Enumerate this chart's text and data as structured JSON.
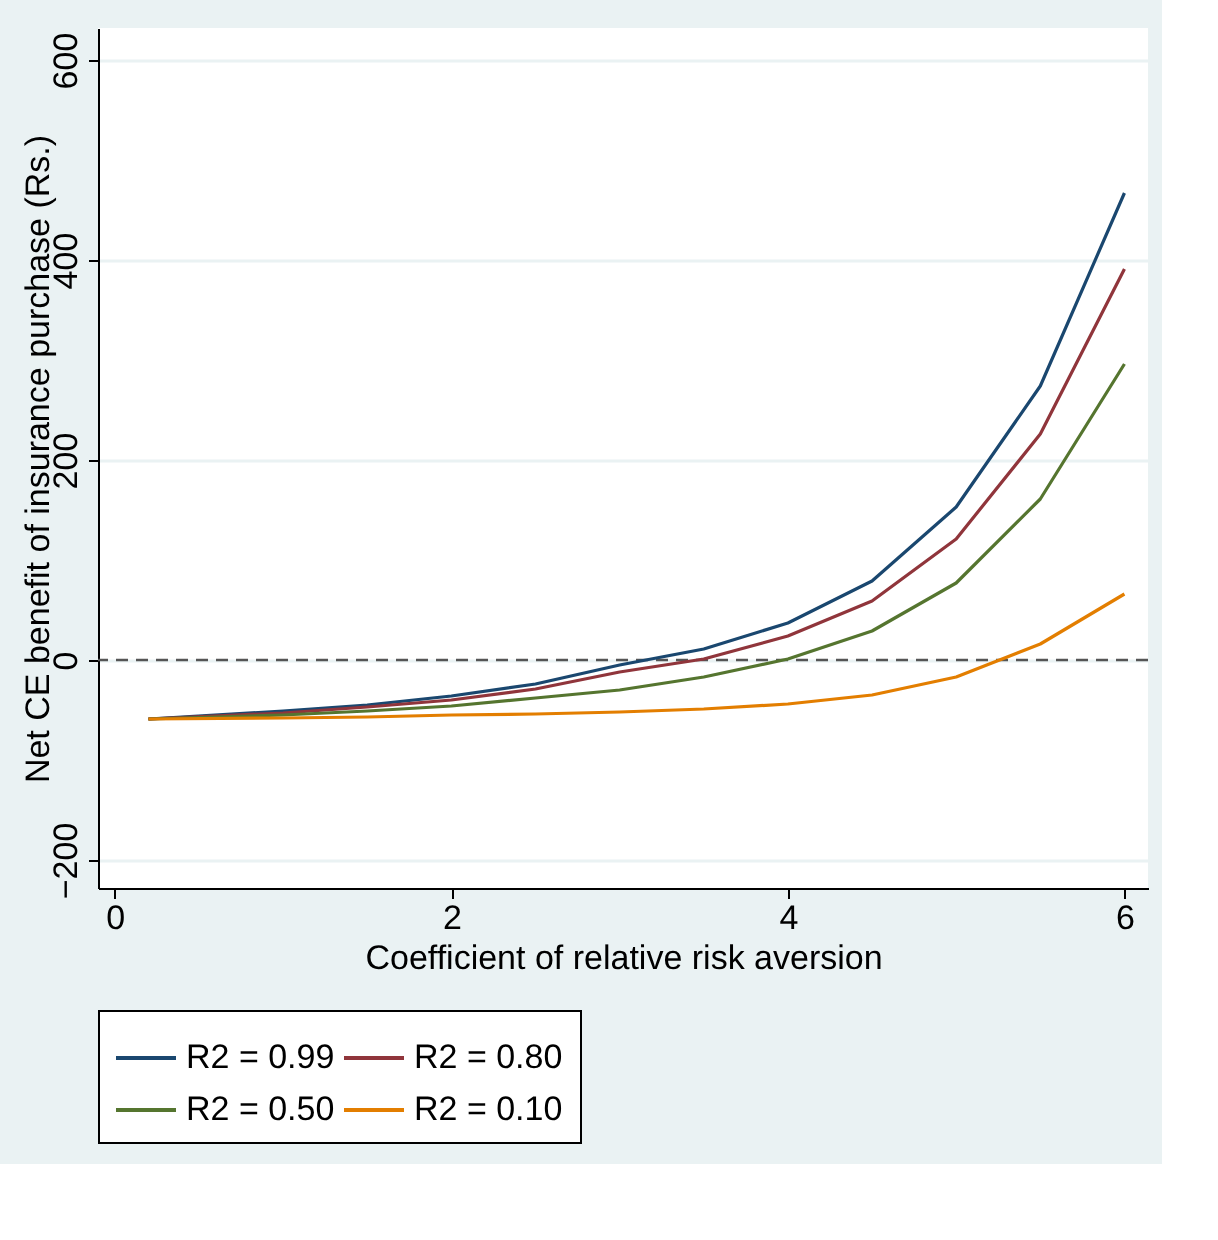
{
  "chart_data": {
    "type": "line",
    "xlabel": "Coefficient of relative risk aversion",
    "ylabel": "Net CE benefit of insurance purchase (Rs.)",
    "x": [
      0.2,
      1,
      1.5,
      2,
      2.5,
      3,
      3.5,
      4,
      4.5,
      5,
      5.5,
      6
    ],
    "series": [
      {
        "name": "R2 = 0.99",
        "color": "#1a476f",
        "values": [
          -59,
          -51,
          -45,
          -36,
          -24,
          -5,
          11,
          37,
          79,
          153,
          274,
          467
        ]
      },
      {
        "name": "R2 = 0.80",
        "color": "#90353b",
        "values": [
          -59,
          -53,
          -47,
          -40,
          -29,
          -12,
          1,
          24,
          59,
          121,
          226,
          391
        ]
      },
      {
        "name": "R2 = 0.50",
        "color": "#55752f",
        "values": [
          -59,
          -55,
          -51,
          -46,
          -38,
          -30,
          -17,
          1,
          29,
          77,
          161,
          296
        ]
      },
      {
        "name": "R2 = 0.10",
        "color": "#e37e00",
        "values": [
          -59,
          -58,
          -57,
          -55,
          -54,
          -52,
          -49,
          -44,
          -35,
          -17,
          16,
          66
        ]
      }
    ],
    "xlim": [
      -0.1,
      6.14
    ],
    "xticks": [
      0,
      2,
      4,
      6
    ],
    "ylim": [
      -228,
      632
    ],
    "yticks": [
      -200,
      0,
      200,
      400,
      600
    ],
    "grid": "y",
    "legend": "bottom",
    "line_style": "solid",
    "marker": "none",
    "ref_lines": [
      {
        "axis": "y",
        "value": 0,
        "color": "#555555",
        "line_style": "dashed"
      }
    ]
  }
}
